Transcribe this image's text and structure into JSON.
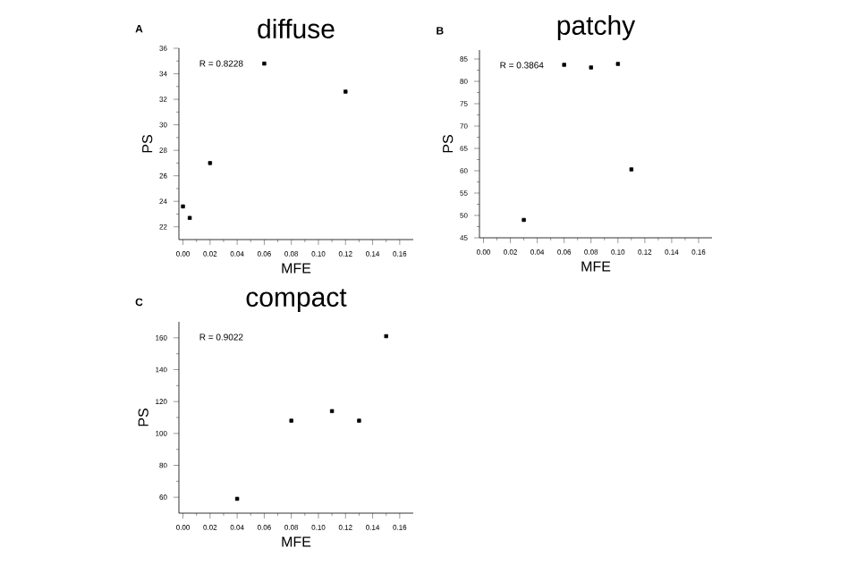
{
  "chart_data": [
    {
      "type": "scatter",
      "title": "diffuse",
      "xlabel": "MFE",
      "ylabel": "PS",
      "annotations": [
        "A",
        "R = 0.8228"
      ],
      "x": [
        0.0,
        0.005,
        0.02,
        0.06,
        0.12
      ],
      "values": [
        23.6,
        22.7,
        27.0,
        34.8,
        32.6
      ],
      "color": "#000000",
      "marker": "square",
      "xlim": [
        -0.003,
        0.17
      ],
      "ylim": [
        21,
        36
      ],
      "xticks": [
        {
          "value": 0,
          "label": "0.00"
        },
        {
          "value": 0.02,
          "label": "0.02"
        },
        {
          "value": 0.04,
          "label": "0.04"
        },
        {
          "value": 0.06,
          "label": "0.06"
        },
        {
          "value": 0.08,
          "label": "0.08"
        },
        {
          "value": 0.1,
          "label": "0.10"
        },
        {
          "value": 0.12,
          "label": "0.12"
        },
        {
          "value": 0.14,
          "label": "0.14"
        },
        {
          "value": 0.16,
          "label": "0.16"
        }
      ],
      "yticks": [
        22,
        24,
        26,
        28,
        30,
        32,
        34,
        36
      ]
    },
    {
      "type": "scatter",
      "title": "patchy",
      "xlabel": "MFE",
      "ylabel": "PS",
      "annotations": [
        "B",
        "R = 0.3864"
      ],
      "x": [
        0.03,
        0.06,
        0.08,
        0.1,
        0.11
      ],
      "values": [
        49,
        83.7,
        83.1,
        83.9,
        60.3
      ],
      "color": "#000000",
      "marker": "square",
      "xlim": [
        -0.003,
        0.17
      ],
      "ylim": [
        45,
        87
      ],
      "xticks": [
        {
          "value": 0,
          "label": "0.00"
        },
        {
          "value": 0.02,
          "label": "0.02"
        },
        {
          "value": 0.04,
          "label": "0.04"
        },
        {
          "value": 0.06,
          "label": "0.06"
        },
        {
          "value": 0.08,
          "label": "0.08"
        },
        {
          "value": 0.1,
          "label": "0.10"
        },
        {
          "value": 0.12,
          "label": "0.12"
        },
        {
          "value": 0.14,
          "label": "0.14"
        },
        {
          "value": 0.16,
          "label": "0.16"
        }
      ],
      "yticks": [
        45,
        50,
        55,
        60,
        65,
        70,
        75,
        80,
        85
      ]
    },
    {
      "type": "scatter",
      "title": "compact",
      "xlabel": "MFE",
      "ylabel": "PS",
      "annotations": [
        "C",
        "R = 0.9022"
      ],
      "x": [
        0.04,
        0.08,
        0.11,
        0.13,
        0.15
      ],
      "values": [
        59,
        108,
        114,
        108,
        161
      ],
      "color": "#000000",
      "marker": "square",
      "xlim": [
        -0.003,
        0.17
      ],
      "ylim": [
        50,
        170
      ],
      "xticks": [
        {
          "value": 0,
          "label": "0.00"
        },
        {
          "value": 0.02,
          "label": "0.02"
        },
        {
          "value": 0.04,
          "label": "0.04"
        },
        {
          "value": 0.06,
          "label": "0.06"
        },
        {
          "value": 0.08,
          "label": "0.08"
        },
        {
          "value": 0.1,
          "label": "0.10"
        },
        {
          "value": 0.12,
          "label": "0.12"
        },
        {
          "value": 0.14,
          "label": "0.14"
        },
        {
          "value": 0.16,
          "label": "0.16"
        }
      ],
      "yticks": [
        60,
        80,
        100,
        120,
        140,
        160
      ]
    }
  ]
}
